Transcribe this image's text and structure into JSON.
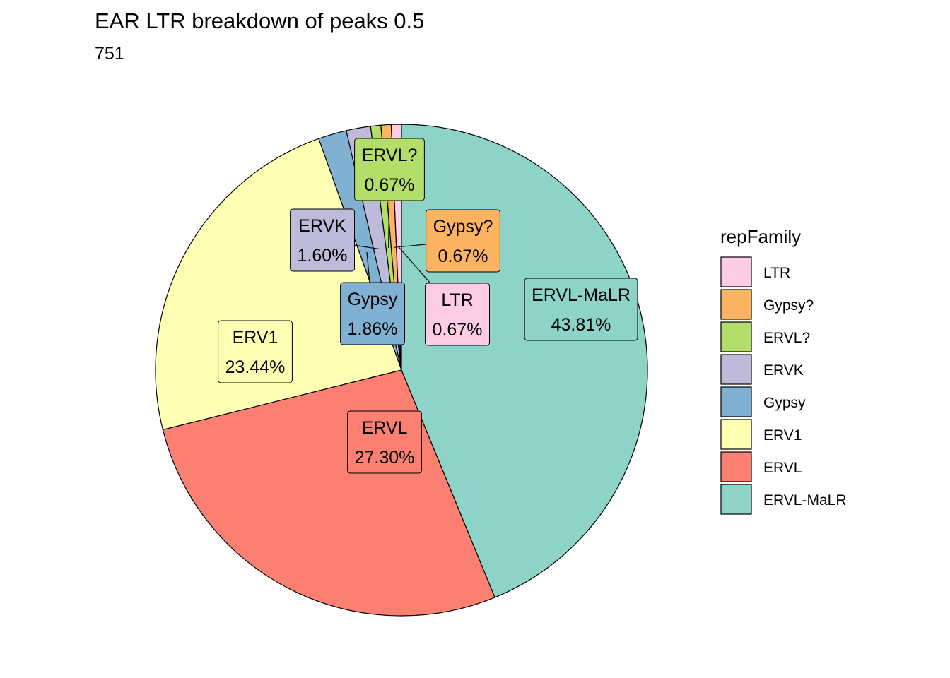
{
  "chart_data": {
    "type": "pie",
    "title": "EAR LTR breakdown of peaks 0.5",
    "subtitle": "751",
    "legend_title": "repFamily",
    "legend_position": "right",
    "slices": [
      {
        "name": "LTR",
        "value": 0.67,
        "label": "LTR",
        "percent_label": "0.67%",
        "color": "#FCCDE5"
      },
      {
        "name": "Gypsy?",
        "value": 0.67,
        "label": "Gypsy?",
        "percent_label": "0.67%",
        "color": "#FDB462"
      },
      {
        "name": "ERVL?",
        "value": 0.67,
        "label": "ERVL?",
        "percent_label": "0.67%",
        "color": "#B3DE69"
      },
      {
        "name": "ERVK",
        "value": 1.6,
        "label": "ERVK",
        "percent_label": "1.60%",
        "color": "#BEBADA"
      },
      {
        "name": "Gypsy",
        "value": 1.86,
        "label": "Gypsy",
        "percent_label": "1.86%",
        "color": "#80B1D3"
      },
      {
        "name": "ERV1",
        "value": 23.44,
        "label": "ERV1",
        "percent_label": "23.44%",
        "color": "#FFFFB3"
      },
      {
        "name": "ERVL",
        "value": 27.3,
        "label": "ERVL",
        "percent_label": "27.30%",
        "color": "#FB8072"
      },
      {
        "name": "ERVL-MaLR",
        "value": 43.81,
        "label": "ERVL-MaLR",
        "percent_label": "43.81%",
        "color": "#8DD3C7"
      }
    ],
    "legend_order": [
      "LTR",
      "Gypsy?",
      "ERVL?",
      "ERVK",
      "Gypsy",
      "ERV1",
      "ERVL",
      "ERVL-MaLR"
    ]
  }
}
